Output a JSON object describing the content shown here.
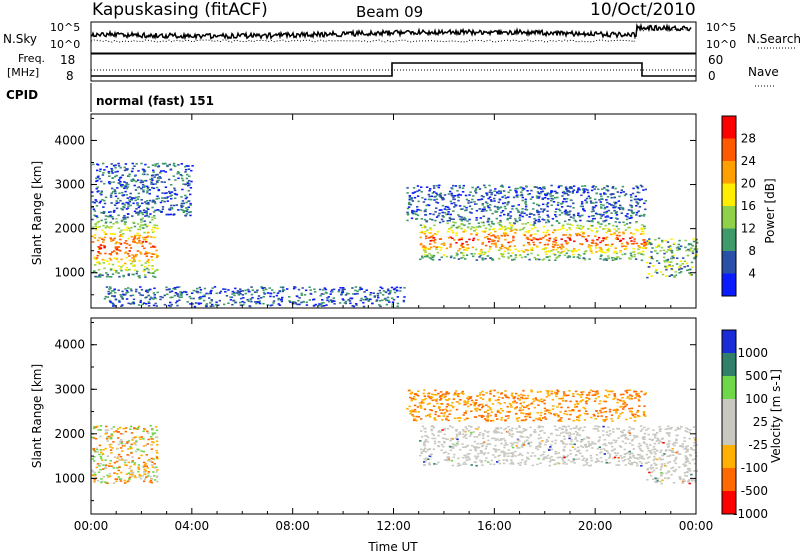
{
  "header": {
    "station": "Kapuskasing (fitACF)",
    "beam": "Beam 09",
    "date": "10/Oct/2010"
  },
  "sky_panel": {
    "left_label": "N.Sky",
    "ticks": [
      "10^5",
      "10^0"
    ],
    "right_label": "N.Search",
    "right_ticks": [
      "10^5",
      "10^0"
    ]
  },
  "freq_panel": {
    "left_label_1": "Freq.",
    "left_label_2": "[MHz]",
    "ticks": [
      "18",
      "8"
    ],
    "right_label": "Nave",
    "right_ticks": [
      "60",
      "0"
    ],
    "cpid_label": "CPID",
    "mode_text": "normal (fast) 151"
  },
  "chart_data": [
    {
      "type": "heatmap",
      "title": "",
      "ylabel": "Slant Range [km]",
      "xlabel": "",
      "xlim": [
        0,
        24
      ],
      "ylim": [
        200,
        4600
      ],
      "y_ticks": [
        "4000",
        "3000",
        "2000",
        "1000"
      ],
      "colorbar_label": "Power [dB]",
      "colorbar_ticks": [
        "28",
        "24",
        "20",
        "16",
        "12",
        "8",
        "4"
      ],
      "colorbar_colors": [
        "#ff0000",
        "#ff5a00",
        "#ff9f00",
        "#ffee00",
        "#8fd24a",
        "#3f9a6a",
        "#2a4fa8",
        "#0a1bff"
      ],
      "regions": [
        {
          "name": "early-band",
          "x": [
            0.0,
            2.6
          ],
          "y": [
            900,
            2300
          ],
          "level": "high"
        },
        {
          "name": "morning-scatter",
          "x": [
            0.0,
            4.0
          ],
          "y": [
            2300,
            3500
          ],
          "level": "low"
        },
        {
          "name": "ground-scatter",
          "x": [
            0.5,
            12.5
          ],
          "y": [
            250,
            700
          ],
          "level": "low"
        },
        {
          "name": "afternoon-band",
          "x": [
            13.0,
            22.0
          ],
          "y": [
            1300,
            2200
          ],
          "level": "high"
        },
        {
          "name": "upper-band",
          "x": [
            12.5,
            22.0
          ],
          "y": [
            2200,
            3000
          ],
          "level": "low"
        },
        {
          "name": "late-band",
          "x": [
            22.0,
            24.0
          ],
          "y": [
            900,
            1800
          ],
          "level": "mid"
        }
      ]
    },
    {
      "type": "heatmap",
      "title": "",
      "ylabel": "Slant Range [km]",
      "xlabel": "Time UT",
      "xlim": [
        0,
        24
      ],
      "ylim": [
        200,
        4600
      ],
      "x_ticks": [
        "00:00",
        "04:00",
        "08:00",
        "12:00",
        "16:00",
        "20:00",
        "00:00"
      ],
      "y_ticks": [
        "4000",
        "3000",
        "2000",
        "1000"
      ],
      "colorbar_label": "Velocity [m s-1]",
      "colorbar_ticks": [
        "1000",
        "500",
        "100",
        "25",
        "-25",
        "-100",
        "-500",
        "-1000"
      ],
      "colorbar_colors": [
        "#1a2bd8",
        "#2f7f6a",
        "#6fd84a",
        "#c8c8c0",
        "#c8c8c0",
        "#ffb000",
        "#ff6a00",
        "#ff0000"
      ],
      "regions": [
        {
          "name": "early-band",
          "x": [
            0.0,
            2.6
          ],
          "y": [
            900,
            2200
          ],
          "level": "mixed"
        },
        {
          "name": "ground-scatter-grey",
          "x": [
            13.0,
            22.0
          ],
          "y": [
            1300,
            2200
          ],
          "level": "zero"
        },
        {
          "name": "upper-band-orange",
          "x": [
            12.5,
            22.0
          ],
          "y": [
            2300,
            3000
          ],
          "level": "negative"
        },
        {
          "name": "late-band-grey",
          "x": [
            22.0,
            24.0
          ],
          "y": [
            900,
            2200
          ],
          "level": "zero"
        }
      ]
    }
  ]
}
